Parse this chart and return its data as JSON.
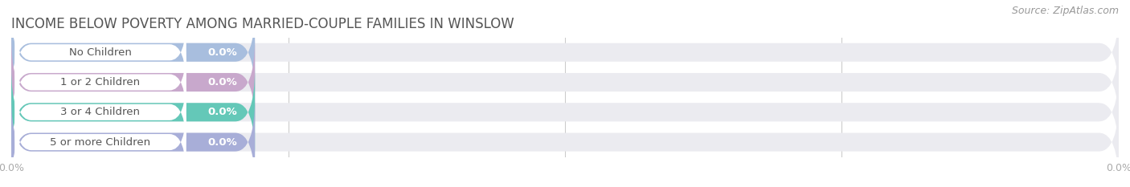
{
  "title": "INCOME BELOW POVERTY AMONG MARRIED-COUPLE FAMILIES IN WINSLOW",
  "source": "Source: ZipAtlas.com",
  "categories": [
    "No Children",
    "1 or 2 Children",
    "3 or 4 Children",
    "5 or more Children"
  ],
  "values": [
    0.0,
    0.0,
    0.0,
    0.0
  ],
  "bar_colors": [
    "#a8bede",
    "#c8a8cc",
    "#64c8b8",
    "#a8aed8"
  ],
  "bar_bg_color": "#ebebf0",
  "white_pill_color": "#ffffff",
  "value_label": "0.0%",
  "xlim_max": 100,
  "title_fontsize": 12,
  "source_fontsize": 9,
  "label_fontsize": 9.5,
  "value_fontsize": 9.5,
  "background_color": "#ffffff",
  "tick_label_color": "#aaaaaa",
  "title_color": "#555555",
  "source_color": "#999999",
  "bar_label_color": "#555555",
  "value_label_color": "#ffffff",
  "xtick_positions": [
    0,
    100
  ],
  "xtick_labels": [
    "0.0%",
    "0.0%"
  ],
  "grid_positions": [
    0,
    25,
    50,
    75,
    100
  ]
}
